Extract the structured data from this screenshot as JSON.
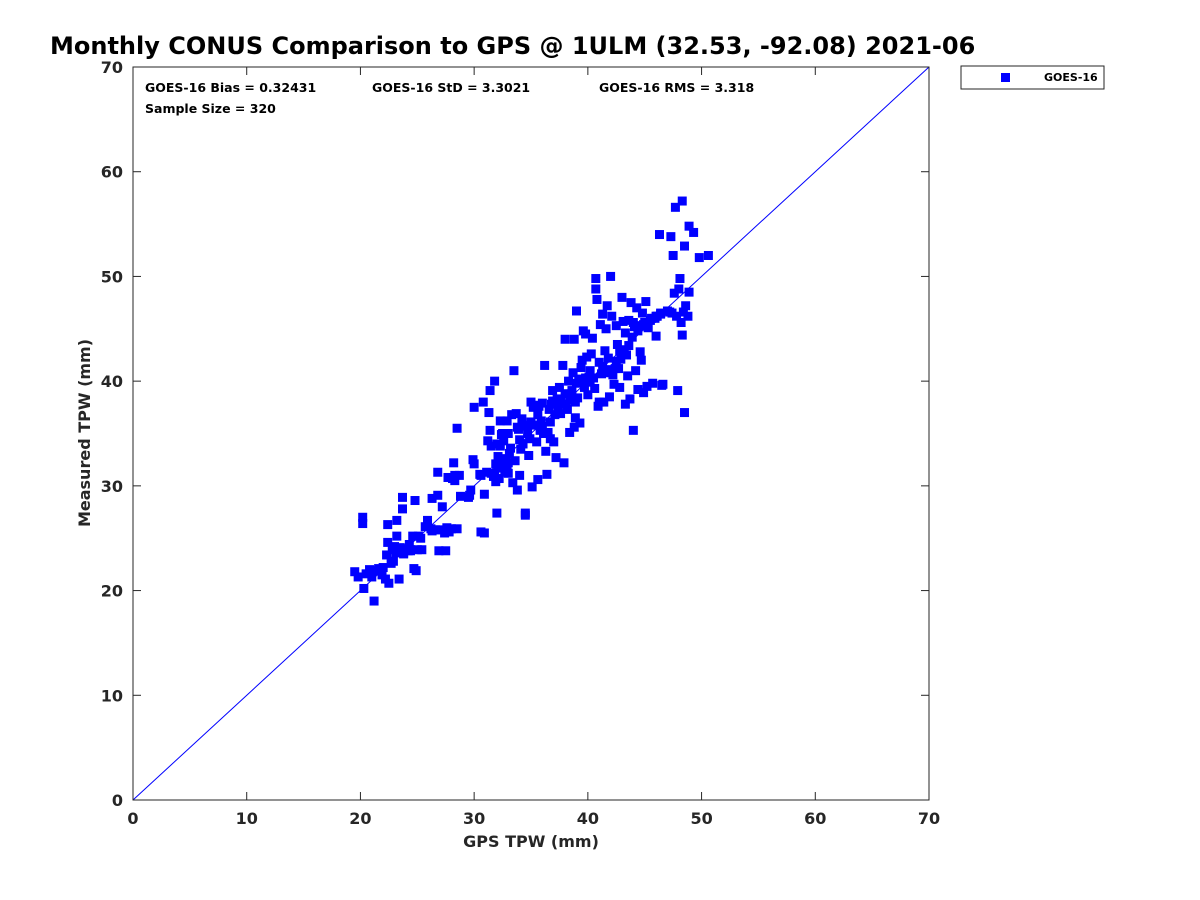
{
  "chart_data": {
    "type": "scatter",
    "title": "Monthly CONUS Comparison to GPS @ 1ULM (32.53, -92.08) 2021-06",
    "xlabel": "GPS TPW (mm)",
    "ylabel": "Measured TPW (mm)",
    "xlim": [
      0,
      70
    ],
    "ylim": [
      0,
      70
    ],
    "xticks": [
      "0",
      "10",
      "20",
      "30",
      "40",
      "50",
      "60",
      "70"
    ],
    "yticks": [
      "0",
      "10",
      "20",
      "30",
      "40",
      "50",
      "60",
      "70"
    ],
    "stats": {
      "bias": "GOES-16 Bias = 0.32431",
      "std": "GOES-16 StD = 3.3021",
      "rms": "GOES-16 RMS = 3.318",
      "sample": "Sample Size = 320"
    },
    "legend": {
      "position": "top-right-outside",
      "entries": [
        "GOES-16"
      ]
    },
    "reference_line": {
      "from": [
        0,
        0
      ],
      "to": [
        70,
        70
      ],
      "color": "#0000ff"
    },
    "series": [
      {
        "name": "GOES-16",
        "color": "#0000ff",
        "marker": "square",
        "points": [
          [
            19.5,
            21.8
          ],
          [
            19.8,
            21.3
          ],
          [
            20.2,
            26.4
          ],
          [
            20.2,
            27.0
          ],
          [
            20.3,
            20.2
          ],
          [
            20.5,
            21.6
          ],
          [
            20.8,
            22.0
          ],
          [
            21.0,
            21.3
          ],
          [
            21.2,
            19.0
          ],
          [
            21.4,
            21.9
          ],
          [
            21.6,
            22.1
          ],
          [
            21.9,
            21.5
          ],
          [
            22.0,
            22.2
          ],
          [
            22.2,
            21.1
          ],
          [
            22.3,
            23.4
          ],
          [
            22.4,
            26.3
          ],
          [
            22.4,
            24.6
          ],
          [
            22.5,
            20.7
          ],
          [
            22.7,
            22.6
          ],
          [
            22.8,
            23.9
          ],
          [
            23.0,
            24.2
          ],
          [
            23.1,
            23.6
          ],
          [
            23.2,
            26.7
          ],
          [
            23.2,
            25.2
          ],
          [
            23.4,
            21.1
          ],
          [
            23.5,
            24.1
          ],
          [
            23.7,
            28.9
          ],
          [
            23.7,
            27.8
          ],
          [
            23.8,
            23.5
          ],
          [
            24.0,
            24.0
          ],
          [
            24.2,
            23.8
          ],
          [
            24.3,
            24.4
          ],
          [
            24.4,
            23.8
          ],
          [
            24.6,
            25.2
          ],
          [
            24.7,
            22.1
          ],
          [
            24.8,
            28.6
          ],
          [
            24.9,
            21.9
          ],
          [
            25.0,
            23.9
          ],
          [
            25.1,
            25.2
          ],
          [
            25.4,
            23.9
          ],
          [
            25.7,
            26.1
          ],
          [
            25.9,
            26.7
          ],
          [
            26.2,
            25.9
          ],
          [
            26.3,
            28.8
          ],
          [
            26.6,
            25.8
          ],
          [
            26.8,
            31.3
          ],
          [
            26.8,
            29.1
          ],
          [
            26.9,
            23.8
          ],
          [
            27.0,
            25.8
          ],
          [
            27.2,
            28.0
          ],
          [
            27.4,
            25.5
          ],
          [
            27.5,
            23.8
          ],
          [
            27.7,
            30.8
          ],
          [
            27.8,
            25.6
          ],
          [
            28.0,
            25.9
          ],
          [
            28.1,
            30.7
          ],
          [
            28.2,
            32.2
          ],
          [
            28.3,
            31.0
          ],
          [
            28.3,
            30.5
          ],
          [
            28.5,
            25.9
          ],
          [
            28.5,
            35.5
          ],
          [
            28.7,
            31.0
          ],
          [
            29.5,
            28.9
          ],
          [
            29.6,
            29.1
          ],
          [
            29.9,
            32.5
          ],
          [
            30.0,
            37.5
          ],
          [
            30.0,
            32.1
          ],
          [
            30.6,
            31.0
          ],
          [
            30.6,
            25.6
          ],
          [
            30.8,
            38.0
          ],
          [
            30.9,
            25.5
          ],
          [
            30.9,
            29.2
          ],
          [
            31.1,
            31.3
          ],
          [
            31.2,
            34.3
          ],
          [
            31.3,
            37.0
          ],
          [
            31.4,
            39.1
          ],
          [
            31.4,
            35.3
          ],
          [
            31.5,
            31.2
          ],
          [
            31.5,
            33.8
          ],
          [
            31.8,
            31.1
          ],
          [
            31.8,
            40.0
          ],
          [
            31.9,
            32.1
          ],
          [
            31.9,
            30.4
          ],
          [
            32.0,
            34.0
          ],
          [
            32.0,
            27.4
          ],
          [
            32.1,
            31.7
          ],
          [
            32.1,
            32.8
          ],
          [
            32.2,
            30.7
          ],
          [
            32.3,
            33.8
          ],
          [
            32.3,
            36.2
          ],
          [
            32.5,
            35.0
          ],
          [
            32.6,
            32.0
          ],
          [
            32.6,
            34.3
          ],
          [
            32.7,
            31.3
          ],
          [
            32.8,
            32.6
          ],
          [
            32.9,
            36.2
          ],
          [
            33.0,
            31.2
          ],
          [
            33.0,
            35.0
          ],
          [
            33.1,
            33.1
          ],
          [
            33.2,
            33.6
          ],
          [
            33.3,
            36.8
          ],
          [
            33.4,
            30.3
          ],
          [
            33.5,
            41.0
          ],
          [
            33.6,
            32.4
          ],
          [
            33.7,
            36.9
          ],
          [
            33.8,
            29.6
          ],
          [
            33.9,
            35.4
          ],
          [
            34.0,
            31.0
          ],
          [
            34.1,
            33.5
          ],
          [
            34.2,
            36.4
          ],
          [
            34.3,
            34.0
          ],
          [
            34.4,
            35.7
          ],
          [
            34.5,
            27.2
          ],
          [
            34.5,
            27.4
          ],
          [
            34.7,
            35.8
          ],
          [
            34.8,
            32.9
          ],
          [
            34.9,
            34.5
          ],
          [
            35.0,
            36.1
          ],
          [
            35.0,
            38.0
          ],
          [
            35.1,
            29.9
          ],
          [
            35.2,
            37.5
          ],
          [
            35.3,
            35.8
          ],
          [
            35.5,
            34.2
          ],
          [
            35.6,
            30.6
          ],
          [
            35.7,
            37.6
          ],
          [
            35.8,
            35.3
          ],
          [
            35.9,
            36.2
          ],
          [
            36.0,
            37.9
          ],
          [
            36.1,
            35.0
          ],
          [
            36.2,
            41.5
          ],
          [
            36.3,
            33.3
          ],
          [
            36.4,
            31.1
          ],
          [
            36.5,
            35.1
          ],
          [
            36.6,
            37.3
          ],
          [
            36.7,
            34.5
          ],
          [
            36.8,
            37.8
          ],
          [
            36.9,
            39.1
          ],
          [
            37.0,
            34.2
          ],
          [
            37.1,
            36.8
          ],
          [
            37.2,
            32.7
          ],
          [
            37.3,
            38.3
          ],
          [
            37.5,
            39.4
          ],
          [
            37.6,
            36.9
          ],
          [
            37.7,
            37.8
          ],
          [
            37.8,
            41.5
          ],
          [
            37.9,
            32.2
          ],
          [
            38.0,
            38.8
          ],
          [
            38.0,
            44.0
          ],
          [
            38.2,
            37.3
          ],
          [
            38.3,
            40.0
          ],
          [
            38.4,
            35.1
          ],
          [
            38.5,
            38.5
          ],
          [
            38.6,
            39.1
          ],
          [
            38.7,
            40.8
          ],
          [
            38.8,
            35.6
          ],
          [
            38.8,
            44.0
          ],
          [
            38.9,
            36.5
          ],
          [
            39.0,
            46.7
          ],
          [
            39.1,
            38.4
          ],
          [
            39.2,
            40.2
          ],
          [
            39.3,
            36.0
          ],
          [
            39.4,
            41.3
          ],
          [
            39.5,
            42.0
          ],
          [
            39.6,
            44.8
          ],
          [
            39.7,
            40.0
          ],
          [
            39.8,
            44.5
          ],
          [
            39.9,
            42.3
          ],
          [
            40.0,
            38.7
          ],
          [
            40.1,
            40.4
          ],
          [
            40.2,
            41.0
          ],
          [
            40.3,
            42.6
          ],
          [
            40.4,
            44.1
          ],
          [
            40.6,
            39.3
          ],
          [
            40.7,
            49.8
          ],
          [
            40.7,
            48.8
          ],
          [
            40.8,
            47.8
          ],
          [
            40.9,
            37.6
          ],
          [
            41.0,
            38.0
          ],
          [
            41.1,
            45.4
          ],
          [
            41.2,
            40.7
          ],
          [
            41.3,
            46.4
          ],
          [
            41.4,
            38.0
          ],
          [
            41.5,
            42.9
          ],
          [
            41.6,
            45.0
          ],
          [
            41.7,
            47.2
          ],
          [
            41.8,
            42.2
          ],
          [
            41.9,
            38.5
          ],
          [
            42.0,
            50.0
          ],
          [
            42.1,
            46.2
          ],
          [
            42.2,
            40.6
          ],
          [
            42.3,
            39.7
          ],
          [
            42.4,
            41.2
          ],
          [
            42.5,
            45.3
          ],
          [
            42.6,
            43.5
          ],
          [
            42.7,
            41.2
          ],
          [
            42.8,
            39.4
          ],
          [
            42.9,
            42.1
          ],
          [
            43.0,
            48.0
          ],
          [
            43.1,
            45.7
          ],
          [
            43.2,
            43.0
          ],
          [
            43.3,
            37.8
          ],
          [
            43.4,
            42.5
          ],
          [
            43.5,
            40.5
          ],
          [
            43.6,
            45.8
          ],
          [
            43.7,
            38.3
          ],
          [
            43.8,
            47.5
          ],
          [
            43.9,
            44.2
          ],
          [
            44.0,
            35.3
          ],
          [
            44.1,
            45.2
          ],
          [
            44.2,
            41.0
          ],
          [
            44.3,
            47.0
          ],
          [
            44.4,
            39.2
          ],
          [
            44.5,
            45.3
          ],
          [
            44.6,
            42.8
          ],
          [
            44.7,
            42.0
          ],
          [
            44.8,
            46.5
          ],
          [
            44.9,
            38.9
          ],
          [
            45.0,
            45.6
          ],
          [
            45.1,
            47.6
          ],
          [
            45.2,
            39.5
          ],
          [
            45.3,
            45.2
          ],
          [
            45.5,
            45.8
          ],
          [
            45.7,
            39.8
          ],
          [
            45.9,
            46.0
          ],
          [
            46.0,
            44.3
          ],
          [
            46.1,
            46.2
          ],
          [
            46.3,
            54.0
          ],
          [
            46.4,
            46.5
          ],
          [
            46.5,
            39.6
          ],
          [
            46.6,
            39.7
          ],
          [
            47.0,
            46.7
          ],
          [
            47.3,
            53.8
          ],
          [
            47.4,
            46.5
          ],
          [
            47.5,
            52.0
          ],
          [
            47.6,
            48.4
          ],
          [
            47.7,
            56.6
          ],
          [
            47.8,
            46.2
          ],
          [
            47.9,
            39.1
          ],
          [
            48.0,
            48.8
          ],
          [
            48.1,
            49.8
          ],
          [
            48.2,
            45.6
          ],
          [
            48.3,
            57.2
          ],
          [
            48.3,
            44.4
          ],
          [
            48.4,
            46.6
          ],
          [
            48.5,
            52.9
          ],
          [
            48.5,
            37.0
          ],
          [
            48.6,
            47.2
          ],
          [
            48.8,
            46.2
          ],
          [
            48.9,
            48.5
          ],
          [
            48.9,
            54.8
          ],
          [
            49.3,
            54.2
          ],
          [
            49.8,
            51.8
          ],
          [
            50.6,
            52.0
          ],
          [
            24.4,
            23.9
          ],
          [
            26.3,
            25.7
          ],
          [
            27.6,
            26.0
          ],
          [
            31.7,
            30.9
          ],
          [
            32.4,
            34.9
          ],
          [
            33.0,
            32.2
          ],
          [
            34.0,
            34.4
          ],
          [
            35.3,
            37.7
          ],
          [
            36.7,
            36.1
          ],
          [
            37.4,
            37.6
          ],
          [
            38.1,
            37.8
          ],
          [
            38.9,
            38.0
          ],
          [
            39.7,
            39.4
          ],
          [
            40.5,
            40.3
          ],
          [
            41.3,
            41.4
          ],
          [
            42.0,
            41.1
          ],
          [
            42.8,
            42.9
          ],
          [
            43.6,
            43.4
          ],
          [
            44.4,
            44.8
          ],
          [
            45.3,
            45.1
          ],
          [
            46.0,
            46.2
          ],
          [
            22.9,
            22.8
          ],
          [
            23.8,
            23.6
          ],
          [
            25.3,
            25.0
          ],
          [
            28.8,
            29.0
          ],
          [
            29.7,
            29.6
          ],
          [
            30.5,
            31.1
          ],
          [
            33.8,
            35.6
          ],
          [
            34.7,
            35.0
          ],
          [
            36.0,
            35.7
          ],
          [
            36.9,
            38.1
          ],
          [
            37.6,
            38.3
          ],
          [
            38.4,
            38.2
          ],
          [
            39.0,
            39.8
          ],
          [
            39.8,
            40.3
          ],
          [
            40.2,
            39.9
          ],
          [
            41.0,
            41.8
          ],
          [
            41.8,
            40.8
          ],
          [
            42.5,
            41.9
          ],
          [
            43.3,
            44.6
          ],
          [
            44.0,
            45.6
          ],
          [
            44.9,
            45.4
          ],
          [
            45.6,
            46.0
          ],
          [
            46.4,
            46.4
          ],
          [
            47.2,
            46.6
          ],
          [
            35.6,
            36.8
          ],
          [
            32.9,
            31.8
          ]
        ]
      }
    ]
  }
}
